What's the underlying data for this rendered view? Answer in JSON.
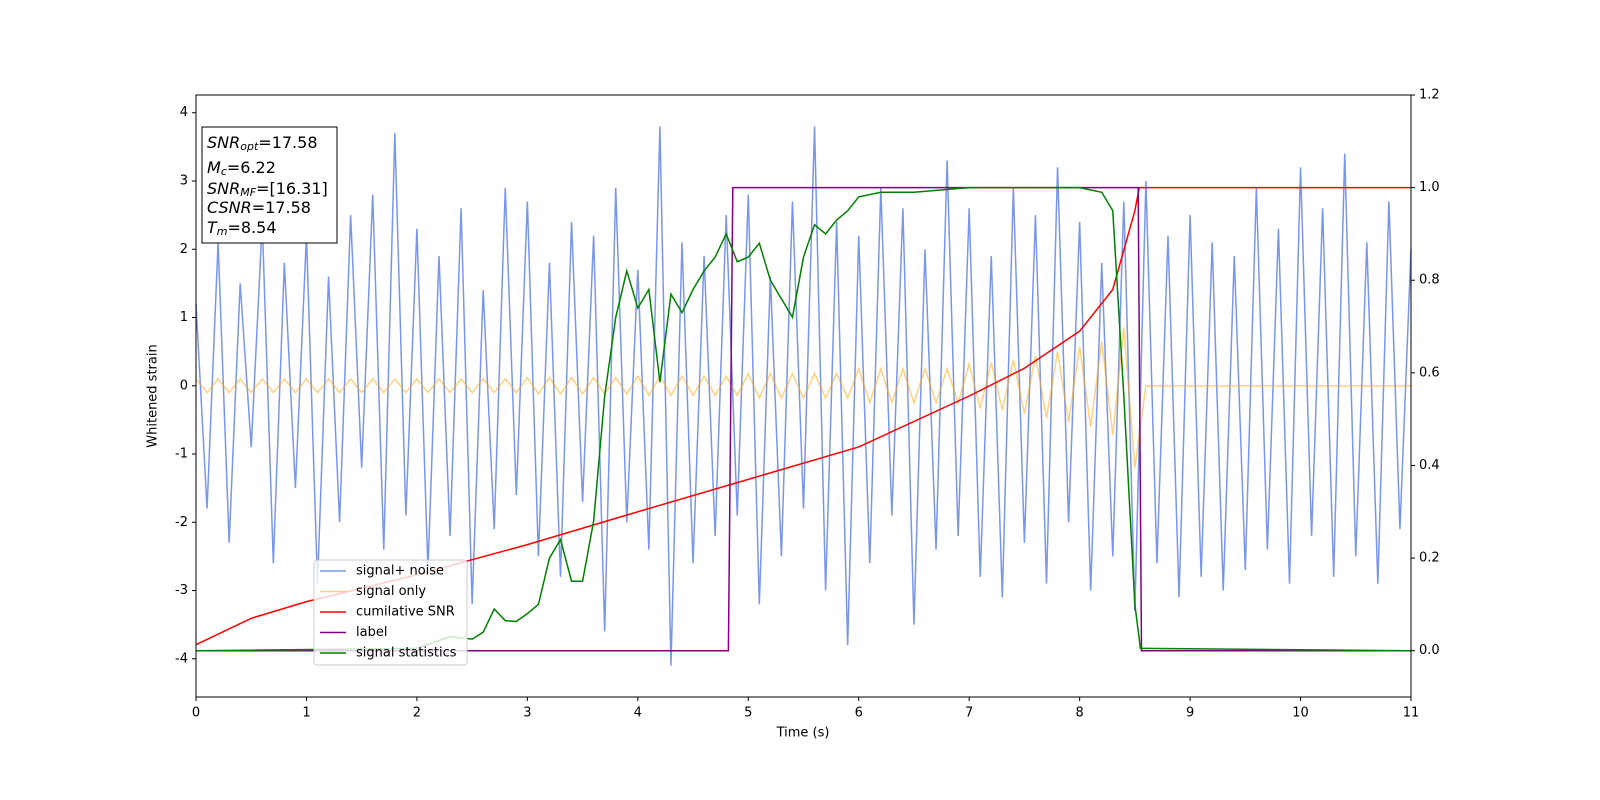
{
  "chart_data": {
    "type": "line",
    "xlabel": "Time (s)",
    "ylabel": "Whitened strain",
    "xlim": [
      0,
      11
    ],
    "xticks": [
      0,
      1,
      2,
      3,
      4,
      5,
      6,
      7,
      8,
      9,
      10,
      11
    ],
    "ylim": [
      -4.56,
      4.26
    ],
    "yticks": [
      -4,
      -3,
      -2,
      -1,
      0,
      1,
      2,
      3,
      4
    ],
    "y2lim": [
      -0.1,
      1.2
    ],
    "y2ticks": [
      {
        "value": 0,
        "label": "0.0"
      },
      {
        "value": 0.2,
        "label": "0.2"
      },
      {
        "value": 0.4,
        "label": "0.4"
      },
      {
        "value": 0.6,
        "label": "0.6"
      },
      {
        "value": 0.8,
        "label": "0.8"
      },
      {
        "value": 1.0,
        "label": "1.0"
      },
      {
        "value": 1.2,
        "label": "1.2"
      }
    ],
    "x": [
      0,
      0.1,
      0.2,
      0.3,
      0.4,
      0.5,
      0.6,
      0.7,
      0.8,
      0.9,
      1,
      1.1,
      1.2,
      1.3,
      1.4,
      1.5,
      1.6,
      1.7,
      1.8,
      1.9,
      2,
      2.1,
      2.2,
      2.3,
      2.4,
      2.5,
      2.6,
      2.7,
      2.8,
      2.9,
      3,
      3.1,
      3.2,
      3.3,
      3.4,
      3.5,
      3.6,
      3.7,
      3.8,
      3.9,
      4,
      4.1,
      4.2,
      4.3,
      4.4,
      4.5,
      4.6,
      4.7,
      4.8,
      4.9,
      5,
      5.1,
      5.2,
      5.3,
      5.4,
      5.5,
      5.6,
      5.7,
      5.8,
      5.9,
      6,
      6.1,
      6.2,
      6.3,
      6.4,
      6.5,
      6.6,
      6.7,
      6.8,
      6.9,
      7,
      7.1,
      7.2,
      7.3,
      7.4,
      7.5,
      7.6,
      7.7,
      7.8,
      7.9,
      8,
      8.1,
      8.2,
      8.3,
      8.4,
      8.5,
      8.6,
      8.7,
      8.8,
      8.9,
      9,
      9.1,
      9.2,
      9.3,
      9.4,
      9.5,
      9.6,
      9.7,
      9.8,
      9.9,
      10,
      10.1,
      10.2,
      10.3,
      10.4,
      10.5,
      10.6,
      10.7,
      10.8,
      10.9,
      11
    ],
    "series": [
      {
        "name": "signal+ noise",
        "color": "#4169e1",
        "alpha": 0.7,
        "values": [
          1.2,
          -1.8,
          2.1,
          -2.3,
          1.5,
          -0.9,
          2.4,
          -2.6,
          1.8,
          -1.5,
          2.2,
          -2.9,
          1.6,
          -2.0,
          2.5,
          -1.2,
          2.8,
          -2.4,
          3.7,
          -1.9,
          2.3,
          -2.7,
          1.9,
          -2.2,
          2.6,
          -3.2,
          1.4,
          -2.1,
          2.9,
          -1.6,
          2.7,
          -2.5,
          1.8,
          -2.8,
          2.4,
          -1.7,
          2.2,
          -3.6,
          2.9,
          -2.0,
          1.7,
          -2.4,
          3.8,
          -4.1,
          2.1,
          -2.6,
          1.9,
          -2.2,
          2.5,
          -1.9,
          2.8,
          -3.2,
          1.6,
          -2.5,
          2.7,
          -1.8,
          3.8,
          -3.0,
          2.4,
          -3.8,
          2.2,
          -2.6,
          2.9,
          -1.9,
          2.6,
          -3.5,
          2.0,
          -2.4,
          3.3,
          -2.2,
          2.6,
          -2.8,
          1.9,
          -3.1,
          2.9,
          -2.3,
          2.5,
          -2.9,
          3.2,
          -2.0,
          2.4,
          -3.0,
          1.8,
          -2.5,
          2.7,
          -3.3,
          3.0,
          -2.6,
          2.2,
          -3.1,
          2.5,
          -2.8,
          2.1,
          -3.0,
          1.9,
          -2.7,
          2.9,
          -2.4,
          2.3,
          -2.9,
          3.2,
          -2.2,
          2.6,
          -2.8,
          3.4,
          -2.5,
          2.1,
          -2.9,
          2.7,
          -2.1,
          2.0
        ]
      },
      {
        "name": "signal only",
        "color": "#ffa500",
        "alpha": 0.5,
        "values": [
          0.1,
          -0.1,
          0.1,
          -0.1,
          0.1,
          -0.1,
          0.1,
          -0.1,
          0.1,
          -0.1,
          0.1,
          -0.1,
          0.1,
          -0.1,
          0.1,
          -0.1,
          0.1,
          -0.1,
          0.1,
          -0.1,
          0.1,
          -0.1,
          0.1,
          -0.1,
          0.1,
          -0.1,
          0.1,
          -0.1,
          0.1,
          -0.1,
          0.12,
          -0.12,
          0.12,
          -0.12,
          0.12,
          -0.12,
          0.12,
          -0.12,
          0.12,
          -0.12,
          0.14,
          -0.14,
          0.14,
          -0.14,
          0.14,
          -0.14,
          0.14,
          -0.14,
          0.14,
          -0.14,
          0.18,
          -0.18,
          0.18,
          -0.18,
          0.18,
          -0.18,
          0.18,
          -0.18,
          0.18,
          -0.18,
          0.25,
          -0.25,
          0.25,
          -0.25,
          0.25,
          -0.25,
          0.25,
          -0.25,
          0.25,
          -0.25,
          0.32,
          -0.33,
          0.34,
          -0.36,
          0.38,
          -0.41,
          0.44,
          -0.47,
          0.5,
          -0.53,
          0.57,
          -0.6,
          0.65,
          -0.72,
          0.85,
          -1.2,
          0,
          0,
          0,
          0,
          0,
          0,
          0,
          0,
          0,
          0,
          0,
          0,
          0,
          0,
          0,
          0,
          0,
          0,
          0,
          0,
          0,
          0,
          0,
          0,
          0
        ]
      },
      {
        "name": "cumilative SNR",
        "color": "#ff0000",
        "axis": "y2",
        "x": [
          0,
          0.5,
          1,
          2,
          3,
          4,
          5,
          6,
          7,
          7.5,
          8,
          8.3,
          8.5,
          8.54,
          11
        ],
        "values": [
          0.013,
          0.07,
          0.106,
          0.164,
          0.229,
          0.3,
          0.37,
          0.44,
          0.55,
          0.61,
          0.69,
          0.78,
          0.95,
          1.0,
          1.0
        ]
      },
      {
        "name": "label",
        "color": "#800080",
        "axis": "y2",
        "x": [
          0,
          4.82,
          4.86,
          8.53,
          8.56,
          11
        ],
        "values": [
          0,
          0,
          1,
          1,
          0,
          0
        ]
      },
      {
        "name": "signal statistics",
        "color": "#008000",
        "axis": "y2",
        "x": [
          0,
          2,
          2.3,
          2.5,
          2.6,
          2.7,
          2.8,
          2.9,
          3,
          3.1,
          3.2,
          3.3,
          3.4,
          3.5,
          3.6,
          3.7,
          3.8,
          3.9,
          4,
          4.1,
          4.2,
          4.3,
          4.4,
          4.5,
          4.6,
          4.7,
          4.8,
          4.9,
          5,
          5.1,
          5.2,
          5.3,
          5.4,
          5.5,
          5.6,
          5.7,
          5.8,
          5.9,
          6,
          6.2,
          6.5,
          7,
          7.5,
          8,
          8.2,
          8.3,
          8.4,
          8.5,
          8.55,
          11
        ],
        "values": [
          0,
          0.005,
          0.03,
          0.025,
          0.04,
          0.09,
          0.065,
          0.063,
          0.08,
          0.1,
          0.2,
          0.24,
          0.15,
          0.15,
          0.28,
          0.55,
          0.72,
          0.82,
          0.74,
          0.78,
          0.58,
          0.77,
          0.73,
          0.78,
          0.82,
          0.85,
          0.9,
          0.84,
          0.85,
          0.88,
          0.8,
          0.76,
          0.72,
          0.85,
          0.92,
          0.9,
          0.93,
          0.95,
          0.98,
          0.99,
          0.99,
          1.0,
          1.0,
          1.0,
          0.99,
          0.95,
          0.55,
          0.1,
          0.005,
          0
        ]
      }
    ],
    "annotations": [
      {
        "name": "SNR",
        "sub": "opt",
        "value": "=17.58"
      },
      {
        "name": "M",
        "sub": "c",
        "value": "=6.22"
      },
      {
        "name": "SNR",
        "sub": "MF",
        "value": "=[16.31]"
      },
      {
        "name": "CSNR",
        "value": "=17.58"
      },
      {
        "name": "T",
        "sub": "m",
        "value": "=8.54"
      }
    ]
  }
}
